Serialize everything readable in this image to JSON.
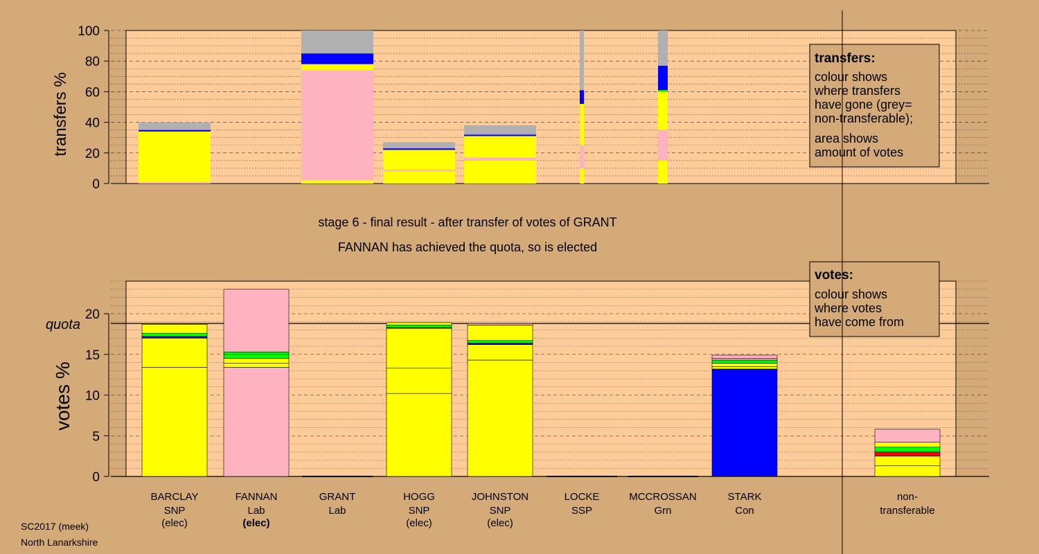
{
  "colors": {
    "background": "#d4aa78",
    "panel": "#ffcc99",
    "SNP": "#ffff00",
    "Lab": "#ffb3c1",
    "Con": "#0000ff",
    "Grn": "#00ff00",
    "SSP": "#ff0000",
    "nontransferable": "#b0b0b0"
  },
  "title_line1": "stage 6 - final result - after transfer of votes of GRANT",
  "title_line2": "FANNAN has achieved the quota, so is elected",
  "footer": {
    "line1": "SC2017 (meek)",
    "line2": "North Lanarkshire"
  },
  "chart_data": [
    {
      "type": "bar",
      "name": "transfers",
      "ylabel": "transfers %",
      "ylim": [
        0,
        100
      ],
      "yticks": [
        "0",
        "20",
        "40",
        "60",
        "80",
        "100"
      ],
      "grid": true,
      "legend": {
        "title": "transfers:",
        "lines": [
          "colour shows",
          "where transfers",
          "have gone (grey=",
          "non-transferable);",
          "area shows",
          "amount of votes"
        ]
      },
      "bars": [
        {
          "slot": 0,
          "width": "wide",
          "segments": [
            {
              "from": 0,
              "to": 1,
              "color": "Lab"
            },
            {
              "from": 1,
              "to": 3,
              "color": "SNP"
            },
            {
              "from": 3,
              "to": 34,
              "color": "SNP"
            },
            {
              "from": 34,
              "to": 35,
              "color": "Con"
            },
            {
              "from": 35,
              "to": 40,
              "color": "nontransferable"
            }
          ]
        },
        {
          "slot": 2,
          "width": "wide",
          "segments": [
            {
              "from": 0,
              "to": 2,
              "color": "SNP"
            },
            {
              "from": 2,
              "to": 74,
              "color": "Lab"
            },
            {
              "from": 74,
              "to": 76,
              "color": "SNP"
            },
            {
              "from": 76,
              "to": 78,
              "color": "SNP"
            },
            {
              "from": 78,
              "to": 85,
              "color": "Con"
            },
            {
              "from": 85,
              "to": 100,
              "color": "nontransferable"
            }
          ]
        },
        {
          "slot": 3,
          "width": "wide",
          "segments": [
            {
              "from": 0,
              "to": 8,
              "color": "SNP"
            },
            {
              "from": 8,
              "to": 9,
              "color": "Lab"
            },
            {
              "from": 9,
              "to": 22,
              "color": "SNP"
            },
            {
              "from": 22,
              "to": 23,
              "color": "Con"
            },
            {
              "from": 23,
              "to": 27,
              "color": "nontransferable"
            }
          ]
        },
        {
          "slot": 4,
          "width": "wide",
          "segments": [
            {
              "from": 0,
              "to": 15,
              "color": "SNP"
            },
            {
              "from": 15,
              "to": 17,
              "color": "Lab"
            },
            {
              "from": 17,
              "to": 31,
              "color": "SNP"
            },
            {
              "from": 31,
              "to": 32,
              "color": "Con"
            },
            {
              "from": 32,
              "to": 38,
              "color": "nontransferable"
            }
          ]
        },
        {
          "slot": 5,
          "width": "thin",
          "segments": [
            {
              "from": 0,
              "to": 10,
              "color": "SNP"
            },
            {
              "from": 10,
              "to": 25,
              "color": "Lab"
            },
            {
              "from": 25,
              "to": 52,
              "color": "SNP"
            },
            {
              "from": 52,
              "to": 61,
              "color": "Con"
            },
            {
              "from": 61,
              "to": 100,
              "color": "nontransferable"
            }
          ]
        },
        {
          "slot": 6,
          "width": "medium",
          "segments": [
            {
              "from": 0,
              "to": 15,
              "color": "SNP"
            },
            {
              "from": 15,
              "to": 35,
              "color": "Lab"
            },
            {
              "from": 35,
              "to": 60,
              "color": "SNP"
            },
            {
              "from": 60,
              "to": 61,
              "color": "Grn"
            },
            {
              "from": 61,
              "to": 77,
              "color": "Con"
            },
            {
              "from": 77,
              "to": 100,
              "color": "nontransferable"
            }
          ]
        }
      ]
    },
    {
      "type": "bar",
      "name": "votes",
      "ylabel": "votes %",
      "ylim": [
        0,
        24
      ],
      "yticks": [
        "0",
        "5",
        "10",
        "15",
        "20"
      ],
      "quota": 18.8,
      "quota_label": "quota",
      "grid": true,
      "legend": {
        "title": "votes:",
        "lines": [
          "colour shows",
          "where votes",
          "have come from"
        ]
      },
      "categories": [
        {
          "name": "BARCLAY",
          "party": "SNP",
          "status": "(elec)",
          "bold_status": false
        },
        {
          "name": "FANNAN",
          "party": "Lab",
          "status": "(elec)",
          "bold_status": true
        },
        {
          "name": "GRANT",
          "party": "Lab",
          "status": "",
          "bold_status": false
        },
        {
          "name": "HOGG",
          "party": "SNP",
          "status": "(elec)",
          "bold_status": false
        },
        {
          "name": "JOHNSTON",
          "party": "SNP",
          "status": "(elec)",
          "bold_status": false
        },
        {
          "name": "LOCKE",
          "party": "SSP",
          "status": "",
          "bold_status": false
        },
        {
          "name": "MCCROSSAN",
          "party": "Grn",
          "status": "",
          "bold_status": false
        },
        {
          "name": "STARK",
          "party": "Con",
          "status": "",
          "bold_status": false
        }
      ],
      "nontransferable_label": [
        "non-",
        "transferable"
      ],
      "bars": [
        {
          "slot": 0,
          "segments": [
            {
              "from": 0,
              "to": 13.4,
              "color": "SNP"
            },
            {
              "from": 13.4,
              "to": 17.0,
              "color": "SNP"
            },
            {
              "from": 17.0,
              "to": 17.2,
              "color": "Con"
            },
            {
              "from": 17.2,
              "to": 17.6,
              "color": "Grn"
            },
            {
              "from": 17.6,
              "to": 18.7,
              "color": "SNP"
            }
          ]
        },
        {
          "slot": 1,
          "segments": [
            {
              "from": 0,
              "to": 13.4,
              "color": "Lab"
            },
            {
              "from": 13.4,
              "to": 13.9,
              "color": "SNP"
            },
            {
              "from": 13.9,
              "to": 14.5,
              "color": "SNP"
            },
            {
              "from": 14.5,
              "to": 15.0,
              "color": "Grn"
            },
            {
              "from": 15.0,
              "to": 15.3,
              "color": "Grn"
            },
            {
              "from": 15.3,
              "to": 23.0,
              "color": "Lab"
            }
          ]
        },
        {
          "slot": 2,
          "segments": []
        },
        {
          "slot": 3,
          "segments": [
            {
              "from": 0,
              "to": 10.2,
              "color": "SNP"
            },
            {
              "from": 10.2,
              "to": 13.3,
              "color": "SNP"
            },
            {
              "from": 13.3,
              "to": 18.2,
              "color": "SNP"
            },
            {
              "from": 18.2,
              "to": 18.3,
              "color": "SSP"
            },
            {
              "from": 18.3,
              "to": 18.6,
              "color": "Grn"
            },
            {
              "from": 18.6,
              "to": 18.9,
              "color": "SNP"
            }
          ]
        },
        {
          "slot": 4,
          "segments": [
            {
              "from": 0,
              "to": 14.3,
              "color": "SNP"
            },
            {
              "from": 14.3,
              "to": 16.2,
              "color": "SNP"
            },
            {
              "from": 16.2,
              "to": 16.4,
              "color": "Con"
            },
            {
              "from": 16.4,
              "to": 16.7,
              "color": "Grn"
            },
            {
              "from": 16.7,
              "to": 18.6,
              "color": "SNP"
            },
            {
              "from": 18.6,
              "to": 18.8,
              "color": "Lab"
            }
          ]
        },
        {
          "slot": 5,
          "segments": []
        },
        {
          "slot": 6,
          "segments": []
        },
        {
          "slot": 7,
          "segments": [
            {
              "from": 0,
              "to": 13.2,
              "color": "Con"
            },
            {
              "from": 13.2,
              "to": 13.5,
              "color": "SNP"
            },
            {
              "from": 13.5,
              "to": 13.9,
              "color": "SNP"
            },
            {
              "from": 13.9,
              "to": 14.3,
              "color": "Grn"
            },
            {
              "from": 14.3,
              "to": 14.5,
              "color": "Lab"
            },
            {
              "from": 14.5,
              "to": 14.9,
              "color": "Lab"
            }
          ]
        },
        {
          "slot": 9,
          "segments": [
            {
              "from": 0,
              "to": 1.3,
              "color": "SNP"
            },
            {
              "from": 1.3,
              "to": 2.5,
              "color": "SNP"
            },
            {
              "from": 2.5,
              "to": 3.0,
              "color": "SSP"
            },
            {
              "from": 3.0,
              "to": 3.6,
              "color": "Grn"
            },
            {
              "from": 3.6,
              "to": 4.2,
              "color": "SNP"
            },
            {
              "from": 4.2,
              "to": 5.8,
              "color": "Lab"
            }
          ]
        }
      ]
    }
  ]
}
